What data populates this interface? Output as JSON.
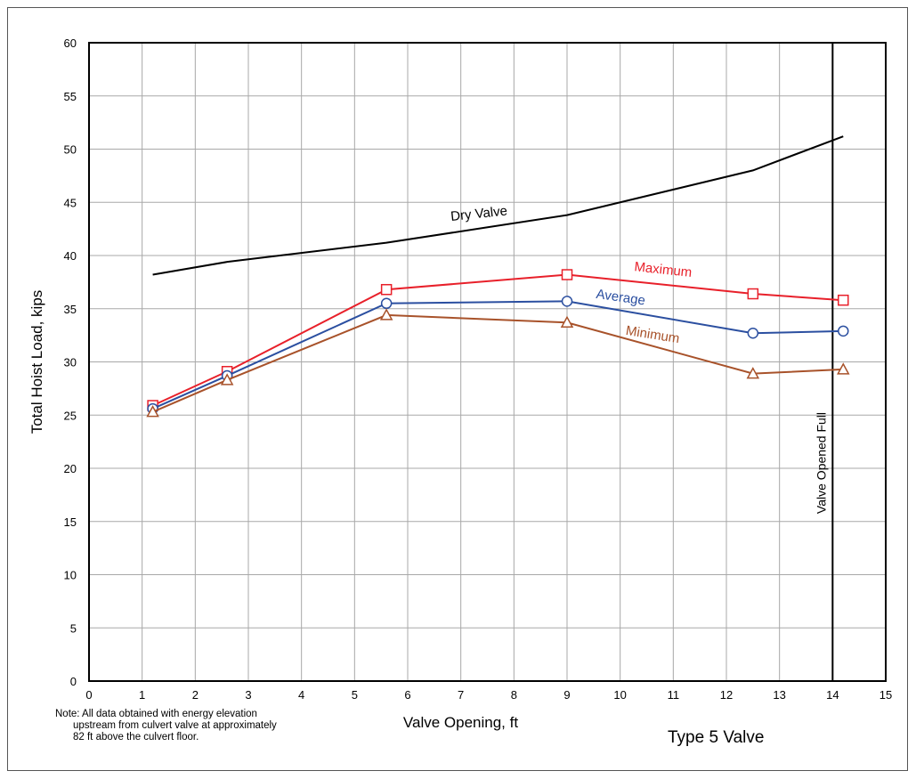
{
  "chart_data": {
    "type": "line",
    "xlabel": "Valve Opening, ft",
    "ylabel": "Total Hoist Load, kips",
    "xlim": [
      0,
      15
    ],
    "ylim": [
      0,
      60
    ],
    "xticks": [
      "0",
      "1",
      "2",
      "3",
      "4",
      "5",
      "6",
      "7",
      "8",
      "9",
      "10",
      "11",
      "12",
      "13",
      "14",
      "15"
    ],
    "yticks": [
      "0",
      "5",
      "10",
      "15",
      "20",
      "25",
      "30",
      "35",
      "40",
      "45",
      "50",
      "55",
      "60"
    ],
    "grid": true,
    "series": [
      {
        "name": "Dry Valve",
        "color": "#000000",
        "marker": "none",
        "x": [
          1.2,
          2.6,
          5.6,
          9.0,
          12.5,
          14.2
        ],
        "y": [
          38.2,
          39.4,
          41.2,
          43.8,
          48.0,
          51.2
        ]
      },
      {
        "name": "Maximum",
        "color": "#e8202a",
        "marker": "square",
        "x": [
          1.2,
          2.6,
          5.6,
          9.0,
          12.5,
          14.2
        ],
        "y": [
          25.9,
          29.1,
          36.8,
          38.2,
          36.4,
          35.8
        ]
      },
      {
        "name": "Average",
        "color": "#2b4fa0",
        "marker": "circle",
        "x": [
          1.2,
          2.6,
          5.6,
          9.0,
          12.5,
          14.2
        ],
        "y": [
          25.6,
          28.7,
          35.5,
          35.7,
          32.7,
          32.9
        ]
      },
      {
        "name": "Minimum",
        "color": "#a8522a",
        "marker": "triangle",
        "x": [
          1.2,
          2.6,
          5.6,
          9.0,
          12.5,
          14.2
        ],
        "y": [
          25.3,
          28.3,
          34.4,
          33.7,
          28.9,
          29.3
        ]
      }
    ],
    "vline": {
      "x": 14.0,
      "label": "Valve Opened Full",
      "color": "#000000"
    }
  },
  "note": {
    "line1": "Note:  All data obtained with energy elevation",
    "line2": "upstream from culvert valve at approximately",
    "line3": "82 ft above the culvert floor."
  },
  "type_label": "Type 5 Valve"
}
